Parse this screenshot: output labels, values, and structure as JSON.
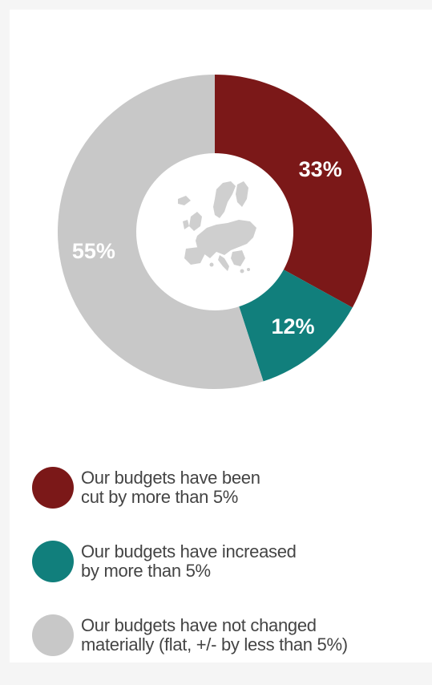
{
  "chart_data": {
    "type": "pie",
    "donut": true,
    "categories": [
      "Our budgets have been cut by more than 5%",
      "Our budgets have increased by more than 5%",
      "Our budgets have not changed materially (flat, +/- by less than 5%)"
    ],
    "values": [
      33,
      12,
      55
    ],
    "value_labels": [
      "33%",
      "12%",
      "55%"
    ],
    "colors": [
      "#7b1818",
      "#117f7c",
      "#c8c8c8"
    ],
    "center_icon": "europe-map-icon",
    "legend_placement": "bottom"
  },
  "legend": [
    {
      "line1": "Our budgets have been",
      "line2": "cut by more than 5%",
      "color": "#7b1818"
    },
    {
      "line1": "Our budgets have increased",
      "line2": "by more than 5%",
      "color": "#117f7c"
    },
    {
      "line1": "Our budgets have not changed",
      "line2": "materially (flat, +/- by less than 5%)",
      "color": "#c8c8c8"
    }
  ]
}
